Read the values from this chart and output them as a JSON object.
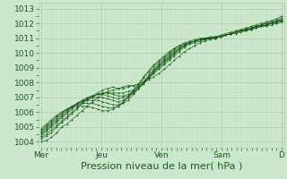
{
  "background_color": "#cce8cc",
  "plot_bg_color": "#cce8cc",
  "grid_major_color": "#aaccaa",
  "grid_minor_color": "#bbddbb",
  "line_color": "#1a5c1a",
  "marker": "+",
  "xlabel": "Pression niveau de la mer( hPa )",
  "xlabel_fontsize": 8,
  "tick_fontsize": 6.5,
  "yticks": [
    1004,
    1005,
    1006,
    1007,
    1008,
    1009,
    1010,
    1011,
    1012,
    1013
  ],
  "xtick_labels": [
    "Mer",
    "Jeu",
    "Ven",
    "Sam",
    "D"
  ],
  "xtick_positions": [
    0,
    48,
    96,
    144,
    192
  ],
  "xlim": [
    -2,
    194
  ],
  "ylim": [
    1003.6,
    1013.4
  ],
  "series": [
    [
      1004.0,
      1004.1,
      1004.3,
      1004.6,
      1005.0,
      1005.2,
      1005.5,
      1005.8,
      1006.1,
      1006.4,
      1006.7,
      1007.0,
      1007.2,
      1007.4,
      1007.5,
      1007.6,
      1007.7,
      1007.8,
      1007.8,
      1007.9,
      1008.0,
      1008.2,
      1008.4,
      1008.6,
      1008.9,
      1009.2,
      1009.5,
      1009.8,
      1010.1,
      1010.3,
      1010.5,
      1010.7,
      1010.8,
      1010.9,
      1011.0,
      1011.1,
      1011.2,
      1011.3,
      1011.3,
      1011.4,
      1011.5,
      1011.6,
      1011.7,
      1011.8,
      1011.8,
      1011.9,
      1012.0,
      1012.1
    ],
    [
      1004.2,
      1004.4,
      1004.6,
      1005.0,
      1005.3,
      1005.6,
      1005.9,
      1006.2,
      1006.6,
      1006.9,
      1007.1,
      1007.3,
      1007.5,
      1007.6,
      1007.7,
      1007.6,
      1007.6,
      1007.7,
      1007.8,
      1007.9,
      1008.1,
      1008.3,
      1008.6,
      1008.9,
      1009.2,
      1009.5,
      1009.8,
      1010.1,
      1010.4,
      1010.6,
      1010.7,
      1010.8,
      1010.9,
      1011.0,
      1011.0,
      1011.1,
      1011.2,
      1011.3,
      1011.4,
      1011.5,
      1011.6,
      1011.7,
      1011.8,
      1011.9,
      1012.0,
      1012.0,
      1012.1,
      1012.2
    ],
    [
      1004.3,
      1004.5,
      1004.8,
      1005.1,
      1005.4,
      1005.7,
      1006.0,
      1006.3,
      1006.6,
      1006.8,
      1007.0,
      1007.2,
      1007.3,
      1007.3,
      1007.3,
      1007.3,
      1007.3,
      1007.4,
      1007.5,
      1007.7,
      1008.0,
      1008.3,
      1008.7,
      1009.0,
      1009.3,
      1009.6,
      1009.9,
      1010.2,
      1010.5,
      1010.7,
      1010.8,
      1010.9,
      1011.0,
      1011.0,
      1011.0,
      1011.1,
      1011.2,
      1011.3,
      1011.4,
      1011.5,
      1011.6,
      1011.7,
      1011.7,
      1011.8,
      1011.9,
      1012.0,
      1012.0,
      1012.1
    ],
    [
      1004.4,
      1004.7,
      1005.0,
      1005.3,
      1005.6,
      1005.9,
      1006.2,
      1006.5,
      1006.7,
      1006.9,
      1007.1,
      1007.2,
      1007.3,
      1007.3,
      1007.2,
      1007.1,
      1007.1,
      1007.2,
      1007.4,
      1007.7,
      1008.0,
      1008.4,
      1008.8,
      1009.1,
      1009.4,
      1009.7,
      1010.0,
      1010.3,
      1010.5,
      1010.7,
      1010.8,
      1010.9,
      1010.9,
      1011.0,
      1011.0,
      1011.1,
      1011.2,
      1011.3,
      1011.4,
      1011.5,
      1011.6,
      1011.7,
      1011.8,
      1011.8,
      1011.9,
      1012.0,
      1012.1,
      1012.2
    ],
    [
      1004.5,
      1004.8,
      1005.1,
      1005.4,
      1005.7,
      1006.0,
      1006.3,
      1006.6,
      1006.8,
      1007.0,
      1007.1,
      1007.2,
      1007.2,
      1007.1,
      1007.0,
      1006.9,
      1007.0,
      1007.1,
      1007.3,
      1007.6,
      1007.9,
      1008.3,
      1008.7,
      1009.1,
      1009.4,
      1009.7,
      1010.0,
      1010.3,
      1010.5,
      1010.7,
      1010.8,
      1010.9,
      1010.9,
      1011.0,
      1011.0,
      1011.1,
      1011.2,
      1011.3,
      1011.4,
      1011.5,
      1011.6,
      1011.7,
      1011.8,
      1011.9,
      1012.0,
      1012.1,
      1012.2,
      1012.2
    ],
    [
      1004.6,
      1004.9,
      1005.2,
      1005.5,
      1005.8,
      1006.1,
      1006.4,
      1006.6,
      1006.8,
      1006.9,
      1007.0,
      1007.0,
      1007.0,
      1006.9,
      1006.8,
      1006.7,
      1006.8,
      1007.0,
      1007.3,
      1007.6,
      1008.0,
      1008.4,
      1008.8,
      1009.2,
      1009.5,
      1009.8,
      1010.1,
      1010.3,
      1010.5,
      1010.7,
      1010.8,
      1010.9,
      1011.0,
      1011.0,
      1011.1,
      1011.1,
      1011.2,
      1011.3,
      1011.4,
      1011.5,
      1011.5,
      1011.6,
      1011.7,
      1011.8,
      1011.9,
      1012.0,
      1012.1,
      1012.2
    ],
    [
      1004.7,
      1005.0,
      1005.3,
      1005.6,
      1005.9,
      1006.2,
      1006.4,
      1006.6,
      1006.7,
      1006.8,
      1006.8,
      1006.8,
      1006.7,
      1006.6,
      1006.5,
      1006.5,
      1006.6,
      1006.8,
      1007.2,
      1007.6,
      1008.0,
      1008.5,
      1008.9,
      1009.3,
      1009.6,
      1009.9,
      1010.2,
      1010.4,
      1010.6,
      1010.7,
      1010.8,
      1010.9,
      1010.9,
      1011.0,
      1011.0,
      1011.1,
      1011.2,
      1011.3,
      1011.4,
      1011.5,
      1011.5,
      1011.6,
      1011.7,
      1011.8,
      1011.9,
      1012.0,
      1012.1,
      1012.3
    ],
    [
      1004.8,
      1005.1,
      1005.4,
      1005.7,
      1006.0,
      1006.2,
      1006.4,
      1006.5,
      1006.6,
      1006.6,
      1006.6,
      1006.5,
      1006.4,
      1006.3,
      1006.3,
      1006.4,
      1006.6,
      1007.0,
      1007.4,
      1007.8,
      1008.3,
      1008.7,
      1009.1,
      1009.4,
      1009.7,
      1010.0,
      1010.3,
      1010.5,
      1010.6,
      1010.7,
      1010.8,
      1010.9,
      1011.0,
      1011.0,
      1011.1,
      1011.1,
      1011.2,
      1011.3,
      1011.4,
      1011.5,
      1011.6,
      1011.7,
      1011.8,
      1011.9,
      1012.0,
      1012.1,
      1012.2,
      1012.4
    ],
    [
      1004.9,
      1005.2,
      1005.5,
      1005.8,
      1006.0,
      1006.2,
      1006.3,
      1006.4,
      1006.4,
      1006.4,
      1006.3,
      1006.2,
      1006.1,
      1006.1,
      1006.2,
      1006.4,
      1006.7,
      1007.1,
      1007.5,
      1007.9,
      1008.4,
      1008.8,
      1009.2,
      1009.5,
      1009.8,
      1010.1,
      1010.3,
      1010.5,
      1010.7,
      1010.8,
      1010.9,
      1011.0,
      1011.0,
      1011.1,
      1011.1,
      1011.2,
      1011.3,
      1011.4,
      1011.5,
      1011.6,
      1011.7,
      1011.8,
      1011.9,
      1012.0,
      1012.1,
      1012.2,
      1012.3,
      1012.5
    ]
  ]
}
